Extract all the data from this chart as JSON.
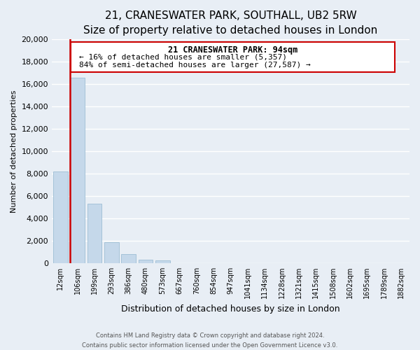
{
  "title": "21, CRANESWATER PARK, SOUTHALL, UB2 5RW",
  "subtitle": "Size of property relative to detached houses in London",
  "xlabel": "Distribution of detached houses by size in London",
  "ylabel": "Number of detached properties",
  "bar_labels": [
    "12sqm",
    "106sqm",
    "199sqm",
    "293sqm",
    "386sqm",
    "480sqm",
    "573sqm",
    "667sqm",
    "760sqm",
    "854sqm",
    "947sqm",
    "1041sqm",
    "1134sqm",
    "1228sqm",
    "1321sqm",
    "1415sqm",
    "1508sqm",
    "1602sqm",
    "1695sqm",
    "1789sqm",
    "1882sqm"
  ],
  "bar_heights": [
    8200,
    16600,
    5300,
    1850,
    800,
    290,
    240,
    0,
    0,
    0,
    0,
    0,
    0,
    0,
    0,
    0,
    0,
    0,
    0,
    0,
    0
  ],
  "bar_color": "#c5d8ea",
  "bar_edge_color": "#9dbdd4",
  "annotation_text_line1": "21 CRANESWATER PARK: 94sqm",
  "annotation_text_line2": "← 16% of detached houses are smaller (5,357)",
  "annotation_text_line3": "84% of semi-detached houses are larger (27,587) →",
  "ylim": [
    0,
    20000
  ],
  "yticks": [
    0,
    2000,
    4000,
    6000,
    8000,
    10000,
    12000,
    14000,
    16000,
    18000,
    20000
  ],
  "annotation_box_color": "#ffffff",
  "annotation_box_edge": "#cc0000",
  "red_line_color": "#cc0000",
  "footer_line1": "Contains HM Land Registry data © Crown copyright and database right 2024.",
  "footer_line2": "Contains public sector information licensed under the Open Government Licence v3.0.",
  "bg_color": "#e8eef5",
  "grid_color": "#ffffff",
  "title_fontsize": 11,
  "subtitle_fontsize": 9,
  "ylabel_fontsize": 8,
  "xlabel_fontsize": 9,
  "ytick_fontsize": 8,
  "xtick_fontsize": 7
}
